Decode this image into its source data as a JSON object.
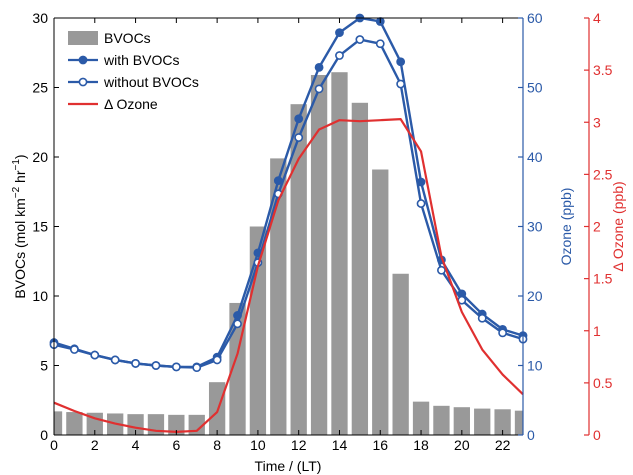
{
  "chart_data": {
    "type": "bar",
    "xlabel": "Time / (LT)",
    "xlim": [
      0,
      23
    ],
    "x_ticks": [
      0,
      2,
      4,
      6,
      8,
      10,
      12,
      14,
      16,
      18,
      20,
      22
    ],
    "hours": [
      0,
      1,
      2,
      3,
      4,
      5,
      6,
      7,
      8,
      9,
      10,
      11,
      12,
      13,
      14,
      15,
      16,
      17,
      18,
      19,
      20,
      21,
      22,
      23
    ],
    "axes": {
      "left": {
        "label": "BVOCs (mol km",
        "label_sup1": "−2",
        "label_mid": " hr",
        "label_sup2": "−1",
        "label_end": ")",
        "ylim": [
          0,
          30
        ],
        "ticks": [
          0,
          5,
          10,
          15,
          20,
          25,
          30
        ],
        "color": "#000000"
      },
      "right1": {
        "label": "Ozone (ppb)",
        "ylim": [
          0,
          60
        ],
        "ticks": [
          0,
          10,
          20,
          30,
          40,
          50,
          60
        ],
        "color": "#2b5aa8"
      },
      "right2": {
        "label": "Δ Ozone (ppb)",
        "ylim": [
          0,
          4
        ],
        "ticks": [
          0,
          0.5,
          1,
          1.5,
          2,
          2.5,
          3,
          3.5,
          4
        ],
        "color": "#e03030"
      }
    },
    "series": [
      {
        "name": "BVOCs",
        "type": "bar",
        "axis": "left",
        "color": "#999999",
        "values": [
          1.7,
          1.65,
          1.6,
          1.55,
          1.5,
          1.5,
          1.45,
          1.45,
          3.8,
          9.5,
          15.0,
          19.9,
          23.8,
          25.9,
          26.1,
          23.9,
          19.1,
          11.6,
          2.4,
          2.1,
          2.0,
          1.9,
          1.85,
          1.75
        ]
      },
      {
        "name": "with BVOCs",
        "type": "line",
        "axis": "right1",
        "color": "#2b5aa8",
        "marker": "filled",
        "values": [
          13.3,
          12.4,
          11.5,
          10.8,
          10.3,
          10.0,
          9.8,
          9.8,
          11.2,
          17.2,
          26.2,
          36.6,
          45.5,
          52.9,
          57.9,
          60.0,
          59.5,
          53.7,
          36.4,
          25.2,
          20.3,
          17.4,
          15.2,
          14.3
        ]
      },
      {
        "name": "without BVOCs",
        "type": "line",
        "axis": "right1",
        "color": "#2b5aa8",
        "marker": "open",
        "values": [
          13.0,
          12.3,
          11.5,
          10.8,
          10.3,
          10.0,
          9.8,
          9.7,
          10.8,
          16.0,
          24.8,
          34.7,
          42.8,
          49.8,
          54.6,
          56.9,
          56.3,
          50.5,
          33.3,
          23.7,
          19.4,
          16.8,
          14.7,
          13.8
        ]
      },
      {
        "name": "Δ Ozone",
        "type": "line",
        "axis": "right2",
        "color": "#e03030",
        "marker": "none",
        "values": [
          0.31,
          0.23,
          0.16,
          0.11,
          0.07,
          0.04,
          0.03,
          0.04,
          0.22,
          0.78,
          1.62,
          2.25,
          2.65,
          2.93,
          3.02,
          3.01,
          3.02,
          3.03,
          2.72,
          1.71,
          1.18,
          0.82,
          0.58,
          0.39
        ]
      }
    ],
    "legend": {
      "placement": "top-left"
    },
    "grid": false
  }
}
